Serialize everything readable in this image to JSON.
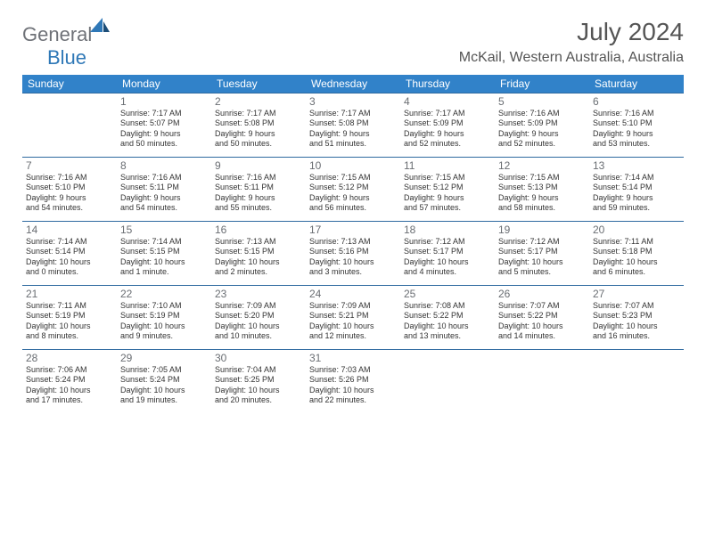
{
  "logo": {
    "general": "General",
    "blue": "Blue"
  },
  "title": "July 2024",
  "location": "McKail, Western Australia, Australia",
  "weekdays": [
    "Sunday",
    "Monday",
    "Tuesday",
    "Wednesday",
    "Thursday",
    "Friday",
    "Saturday"
  ],
  "colors": {
    "header_bg": "#3182c9",
    "header_text": "#ffffff",
    "border": "#2f6aa0",
    "title_text": "#555555",
    "logo_gray": "#6f7278",
    "logo_blue": "#2f78b7"
  },
  "type": "calendar",
  "grid": {
    "rows": 5,
    "cols": 7
  },
  "days": [
    {
      "row": 0,
      "col": 0,
      "n": "",
      "sr": "",
      "ss": "",
      "dl1": "",
      "dl2": ""
    },
    {
      "row": 0,
      "col": 1,
      "n": "1",
      "sr": "Sunrise: 7:17 AM",
      "ss": "Sunset: 5:07 PM",
      "dl1": "Daylight: 9 hours",
      "dl2": "and 50 minutes."
    },
    {
      "row": 0,
      "col": 2,
      "n": "2",
      "sr": "Sunrise: 7:17 AM",
      "ss": "Sunset: 5:08 PM",
      "dl1": "Daylight: 9 hours",
      "dl2": "and 50 minutes."
    },
    {
      "row": 0,
      "col": 3,
      "n": "3",
      "sr": "Sunrise: 7:17 AM",
      "ss": "Sunset: 5:08 PM",
      "dl1": "Daylight: 9 hours",
      "dl2": "and 51 minutes."
    },
    {
      "row": 0,
      "col": 4,
      "n": "4",
      "sr": "Sunrise: 7:17 AM",
      "ss": "Sunset: 5:09 PM",
      "dl1": "Daylight: 9 hours",
      "dl2": "and 52 minutes."
    },
    {
      "row": 0,
      "col": 5,
      "n": "5",
      "sr": "Sunrise: 7:16 AM",
      "ss": "Sunset: 5:09 PM",
      "dl1": "Daylight: 9 hours",
      "dl2": "and 52 minutes."
    },
    {
      "row": 0,
      "col": 6,
      "n": "6",
      "sr": "Sunrise: 7:16 AM",
      "ss": "Sunset: 5:10 PM",
      "dl1": "Daylight: 9 hours",
      "dl2": "and 53 minutes."
    },
    {
      "row": 1,
      "col": 0,
      "n": "7",
      "sr": "Sunrise: 7:16 AM",
      "ss": "Sunset: 5:10 PM",
      "dl1": "Daylight: 9 hours",
      "dl2": "and 54 minutes."
    },
    {
      "row": 1,
      "col": 1,
      "n": "8",
      "sr": "Sunrise: 7:16 AM",
      "ss": "Sunset: 5:11 PM",
      "dl1": "Daylight: 9 hours",
      "dl2": "and 54 minutes."
    },
    {
      "row": 1,
      "col": 2,
      "n": "9",
      "sr": "Sunrise: 7:16 AM",
      "ss": "Sunset: 5:11 PM",
      "dl1": "Daylight: 9 hours",
      "dl2": "and 55 minutes."
    },
    {
      "row": 1,
      "col": 3,
      "n": "10",
      "sr": "Sunrise: 7:15 AM",
      "ss": "Sunset: 5:12 PM",
      "dl1": "Daylight: 9 hours",
      "dl2": "and 56 minutes."
    },
    {
      "row": 1,
      "col": 4,
      "n": "11",
      "sr": "Sunrise: 7:15 AM",
      "ss": "Sunset: 5:12 PM",
      "dl1": "Daylight: 9 hours",
      "dl2": "and 57 minutes."
    },
    {
      "row": 1,
      "col": 5,
      "n": "12",
      "sr": "Sunrise: 7:15 AM",
      "ss": "Sunset: 5:13 PM",
      "dl1": "Daylight: 9 hours",
      "dl2": "and 58 minutes."
    },
    {
      "row": 1,
      "col": 6,
      "n": "13",
      "sr": "Sunrise: 7:14 AM",
      "ss": "Sunset: 5:14 PM",
      "dl1": "Daylight: 9 hours",
      "dl2": "and 59 minutes."
    },
    {
      "row": 2,
      "col": 0,
      "n": "14",
      "sr": "Sunrise: 7:14 AM",
      "ss": "Sunset: 5:14 PM",
      "dl1": "Daylight: 10 hours",
      "dl2": "and 0 minutes."
    },
    {
      "row": 2,
      "col": 1,
      "n": "15",
      "sr": "Sunrise: 7:14 AM",
      "ss": "Sunset: 5:15 PM",
      "dl1": "Daylight: 10 hours",
      "dl2": "and 1 minute."
    },
    {
      "row": 2,
      "col": 2,
      "n": "16",
      "sr": "Sunrise: 7:13 AM",
      "ss": "Sunset: 5:15 PM",
      "dl1": "Daylight: 10 hours",
      "dl2": "and 2 minutes."
    },
    {
      "row": 2,
      "col": 3,
      "n": "17",
      "sr": "Sunrise: 7:13 AM",
      "ss": "Sunset: 5:16 PM",
      "dl1": "Daylight: 10 hours",
      "dl2": "and 3 minutes."
    },
    {
      "row": 2,
      "col": 4,
      "n": "18",
      "sr": "Sunrise: 7:12 AM",
      "ss": "Sunset: 5:17 PM",
      "dl1": "Daylight: 10 hours",
      "dl2": "and 4 minutes."
    },
    {
      "row": 2,
      "col": 5,
      "n": "19",
      "sr": "Sunrise: 7:12 AM",
      "ss": "Sunset: 5:17 PM",
      "dl1": "Daylight: 10 hours",
      "dl2": "and 5 minutes."
    },
    {
      "row": 2,
      "col": 6,
      "n": "20",
      "sr": "Sunrise: 7:11 AM",
      "ss": "Sunset: 5:18 PM",
      "dl1": "Daylight: 10 hours",
      "dl2": "and 6 minutes."
    },
    {
      "row": 3,
      "col": 0,
      "n": "21",
      "sr": "Sunrise: 7:11 AM",
      "ss": "Sunset: 5:19 PM",
      "dl1": "Daylight: 10 hours",
      "dl2": "and 8 minutes."
    },
    {
      "row": 3,
      "col": 1,
      "n": "22",
      "sr": "Sunrise: 7:10 AM",
      "ss": "Sunset: 5:19 PM",
      "dl1": "Daylight: 10 hours",
      "dl2": "and 9 minutes."
    },
    {
      "row": 3,
      "col": 2,
      "n": "23",
      "sr": "Sunrise: 7:09 AM",
      "ss": "Sunset: 5:20 PM",
      "dl1": "Daylight: 10 hours",
      "dl2": "and 10 minutes."
    },
    {
      "row": 3,
      "col": 3,
      "n": "24",
      "sr": "Sunrise: 7:09 AM",
      "ss": "Sunset: 5:21 PM",
      "dl1": "Daylight: 10 hours",
      "dl2": "and 12 minutes."
    },
    {
      "row": 3,
      "col": 4,
      "n": "25",
      "sr": "Sunrise: 7:08 AM",
      "ss": "Sunset: 5:22 PM",
      "dl1": "Daylight: 10 hours",
      "dl2": "and 13 minutes."
    },
    {
      "row": 3,
      "col": 5,
      "n": "26",
      "sr": "Sunrise: 7:07 AM",
      "ss": "Sunset: 5:22 PM",
      "dl1": "Daylight: 10 hours",
      "dl2": "and 14 minutes."
    },
    {
      "row": 3,
      "col": 6,
      "n": "27",
      "sr": "Sunrise: 7:07 AM",
      "ss": "Sunset: 5:23 PM",
      "dl1": "Daylight: 10 hours",
      "dl2": "and 16 minutes."
    },
    {
      "row": 4,
      "col": 0,
      "n": "28",
      "sr": "Sunrise: 7:06 AM",
      "ss": "Sunset: 5:24 PM",
      "dl1": "Daylight: 10 hours",
      "dl2": "and 17 minutes."
    },
    {
      "row": 4,
      "col": 1,
      "n": "29",
      "sr": "Sunrise: 7:05 AM",
      "ss": "Sunset: 5:24 PM",
      "dl1": "Daylight: 10 hours",
      "dl2": "and 19 minutes."
    },
    {
      "row": 4,
      "col": 2,
      "n": "30",
      "sr": "Sunrise: 7:04 AM",
      "ss": "Sunset: 5:25 PM",
      "dl1": "Daylight: 10 hours",
      "dl2": "and 20 minutes."
    },
    {
      "row": 4,
      "col": 3,
      "n": "31",
      "sr": "Sunrise: 7:03 AM",
      "ss": "Sunset: 5:26 PM",
      "dl1": "Daylight: 10 hours",
      "dl2": "and 22 minutes."
    },
    {
      "row": 4,
      "col": 4,
      "n": "",
      "sr": "",
      "ss": "",
      "dl1": "",
      "dl2": ""
    },
    {
      "row": 4,
      "col": 5,
      "n": "",
      "sr": "",
      "ss": "",
      "dl1": "",
      "dl2": ""
    },
    {
      "row": 4,
      "col": 6,
      "n": "",
      "sr": "",
      "ss": "",
      "dl1": "",
      "dl2": ""
    }
  ]
}
